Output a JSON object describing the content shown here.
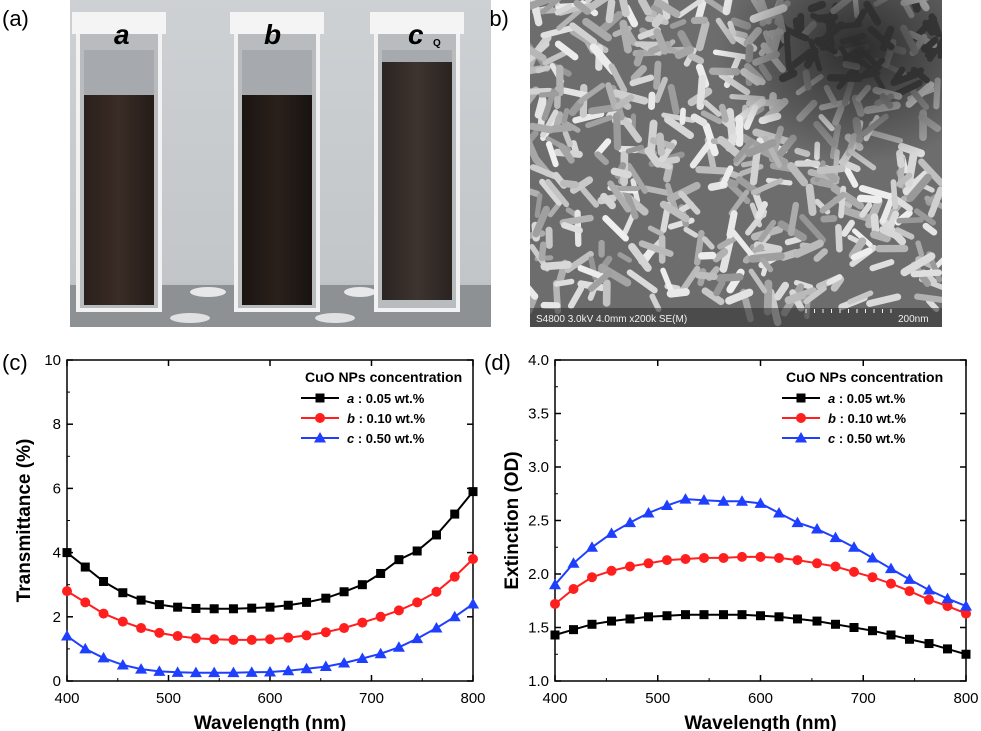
{
  "panels": {
    "a": "(a)",
    "b": "(b)",
    "c": "(c)",
    "d": "(d)"
  },
  "photo": {
    "vial_labels": [
      "a",
      "b",
      "c"
    ],
    "vial_mark": "Q"
  },
  "sem": {
    "footer_info": "S4800 3.0kV 4.0mm x200k SE(M)",
    "scale_label": "200nm"
  },
  "colors": {
    "a": "#000000",
    "b": "#ff1f1f",
    "c": "#1f3fff"
  },
  "chart_data": [
    {
      "type": "line",
      "panel": "c",
      "xlabel": "Wavelength (nm)",
      "ylabel": "Transmittance (%)",
      "xlim": [
        400,
        800
      ],
      "ylim": [
        0,
        10
      ],
      "xticks": [
        400,
        500,
        600,
        700,
        800
      ],
      "yticks": [
        0,
        2,
        4,
        6,
        8,
        10
      ],
      "legend_title": "CuO NPs concentration",
      "legend_position": "top-right",
      "x": [
        400,
        418,
        436,
        455,
        473,
        491,
        509,
        527,
        545,
        564,
        582,
        600,
        618,
        636,
        655,
        673,
        691,
        709,
        727,
        745,
        764,
        782,
        800
      ],
      "series": [
        {
          "name": "a : 0.05 wt.%",
          "letter": "a",
          "suffix": " : 0.05 wt.%",
          "marker": "square",
          "values": [
            4.0,
            3.55,
            3.1,
            2.75,
            2.52,
            2.38,
            2.3,
            2.26,
            2.25,
            2.25,
            2.27,
            2.3,
            2.36,
            2.45,
            2.58,
            2.78,
            3.0,
            3.35,
            3.78,
            4.05,
            4.55,
            5.2,
            5.9
          ]
        },
        {
          "name": "b : 0.10 wt.%",
          "letter": "b",
          "suffix": " : 0.10 wt.%",
          "marker": "circle",
          "values": [
            2.8,
            2.45,
            2.1,
            1.85,
            1.65,
            1.5,
            1.4,
            1.33,
            1.3,
            1.28,
            1.28,
            1.3,
            1.35,
            1.42,
            1.52,
            1.65,
            1.82,
            2.0,
            2.2,
            2.45,
            2.78,
            3.25,
            3.8
          ]
        },
        {
          "name": "c : 0.50 wt.%",
          "letter": "c",
          "suffix": " : 0.50 wt.%",
          "marker": "triangle",
          "values": [
            1.4,
            1.0,
            0.72,
            0.5,
            0.37,
            0.3,
            0.27,
            0.26,
            0.26,
            0.26,
            0.27,
            0.28,
            0.32,
            0.38,
            0.45,
            0.56,
            0.7,
            0.85,
            1.05,
            1.32,
            1.65,
            2.0,
            2.4
          ]
        }
      ]
    },
    {
      "type": "line",
      "panel": "d",
      "xlabel": "Wavelength (nm)",
      "ylabel": "Extinction (OD)",
      "xlim": [
        400,
        800
      ],
      "ylim": [
        1.0,
        4.0
      ],
      "xticks": [
        400,
        500,
        600,
        700,
        800
      ],
      "yticks": [
        1.0,
        1.5,
        2.0,
        2.5,
        3.0,
        3.5,
        4.0
      ],
      "legend_title": "CuO NPs concentration",
      "legend_position": "top-right",
      "x": [
        400,
        418,
        436,
        455,
        473,
        491,
        509,
        527,
        545,
        564,
        582,
        600,
        618,
        636,
        655,
        673,
        691,
        709,
        727,
        745,
        764,
        782,
        800
      ],
      "series": [
        {
          "name": "a : 0.05 wt.%",
          "letter": "a",
          "suffix": " : 0.05 wt.%",
          "marker": "square",
          "values": [
            1.43,
            1.48,
            1.53,
            1.56,
            1.58,
            1.6,
            1.61,
            1.62,
            1.62,
            1.62,
            1.62,
            1.61,
            1.6,
            1.58,
            1.56,
            1.53,
            1.5,
            1.47,
            1.43,
            1.39,
            1.35,
            1.3,
            1.25
          ]
        },
        {
          "name": "b : 0.10 wt.%",
          "letter": "b",
          "suffix": " : 0.10 wt.%",
          "marker": "circle",
          "values": [
            1.72,
            1.86,
            1.97,
            2.03,
            2.07,
            2.1,
            2.13,
            2.14,
            2.15,
            2.15,
            2.16,
            2.16,
            2.15,
            2.13,
            2.1,
            2.07,
            2.02,
            1.97,
            1.91,
            1.84,
            1.76,
            1.7,
            1.63
          ]
        },
        {
          "name": "c : 0.50 wt.%",
          "letter": "c",
          "suffix": " : 0.50 wt.%",
          "marker": "triangle",
          "values": [
            1.9,
            2.1,
            2.25,
            2.38,
            2.48,
            2.57,
            2.64,
            2.7,
            2.69,
            2.68,
            2.68,
            2.66,
            2.57,
            2.48,
            2.42,
            2.34,
            2.25,
            2.15,
            2.05,
            1.95,
            1.85,
            1.77,
            1.7
          ]
        }
      ]
    }
  ]
}
